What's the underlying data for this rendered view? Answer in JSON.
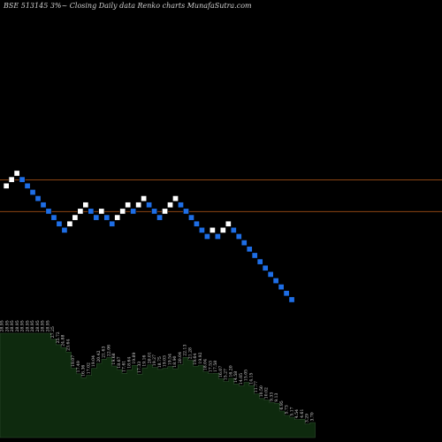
{
  "header": {
    "title": "BSE 513145 3%~  Closing Daily data  Renko  charts MunafaSutra.com"
  },
  "colors": {
    "background": "#000000",
    "up_brick": "#ffffff",
    "down_brick": "#1e6ee6",
    "level_line": "#8b4513",
    "volume_fill": "#0e2a0e",
    "volume_edge": "#2f4f2f"
  },
  "chart_data": {
    "type": "renko",
    "brick_size_note": "3%",
    "bricks": [
      {
        "dir": "up",
        "price": 36.27
      },
      {
        "dir": "up",
        "price": 37.36
      },
      {
        "dir": "up",
        "price": 38.48
      },
      {
        "dir": "down",
        "price": 37.36
      },
      {
        "dir": "down",
        "price": 36.27
      },
      {
        "dir": "down",
        "price": 35.21
      },
      {
        "dir": "down",
        "price": 34.19
      },
      {
        "dir": "down",
        "price": 33.19
      },
      {
        "dir": "down",
        "price": 32.22
      },
      {
        "dir": "down",
        "price": 31.28
      },
      {
        "dir": "down",
        "price": 30.37
      },
      {
        "dir": "down",
        "price": 29.49
      },
      {
        "dir": "up",
        "price": 30.37
      },
      {
        "dir": "up",
        "price": 31.28
      },
      {
        "dir": "up",
        "price": 32.22
      },
      {
        "dir": "up",
        "price": 33.19
      },
      {
        "dir": "down",
        "price": 32.22
      },
      {
        "dir": "down",
        "price": 31.28
      },
      {
        "dir": "up",
        "price": 32.22
      },
      {
        "dir": "down",
        "price": 31.28
      },
      {
        "dir": "down",
        "price": 30.37
      },
      {
        "dir": "up",
        "price": 31.28
      },
      {
        "dir": "up",
        "price": 32.22
      },
      {
        "dir": "up",
        "price": 33.19
      },
      {
        "dir": "down",
        "price": 32.22
      },
      {
        "dir": "up",
        "price": 33.19
      },
      {
        "dir": "up",
        "price": 34.19
      },
      {
        "dir": "down",
        "price": 33.19
      },
      {
        "dir": "down",
        "price": 32.22
      },
      {
        "dir": "down",
        "price": 31.28
      },
      {
        "dir": "up",
        "price": 32.22
      },
      {
        "dir": "up",
        "price": 33.19
      },
      {
        "dir": "up",
        "price": 34.19
      },
      {
        "dir": "down",
        "price": 33.19
      },
      {
        "dir": "down",
        "price": 32.22
      },
      {
        "dir": "down",
        "price": 31.28
      },
      {
        "dir": "down",
        "price": 30.37
      },
      {
        "dir": "down",
        "price": 29.49
      },
      {
        "dir": "down",
        "price": 28.63
      },
      {
        "dir": "up",
        "price": 29.49
      },
      {
        "dir": "down",
        "price": 28.63
      },
      {
        "dir": "up",
        "price": 29.49
      },
      {
        "dir": "up",
        "price": 30.37
      },
      {
        "dir": "down",
        "price": 29.49
      },
      {
        "dir": "down",
        "price": 28.63
      },
      {
        "dir": "down",
        "price": 27.8
      },
      {
        "dir": "down",
        "price": 26.99
      },
      {
        "dir": "down",
        "price": 26.2
      },
      {
        "dir": "down",
        "price": 25.44
      },
      {
        "dir": "down",
        "price": 24.7
      },
      {
        "dir": "down",
        "price": 23.98
      },
      {
        "dir": "down",
        "price": 23.28
      },
      {
        "dir": "down",
        "price": 22.61
      },
      {
        "dir": "down",
        "price": 21.95
      },
      {
        "dir": "down",
        "price": 21.31
      }
    ],
    "horizontal_levels": [
      36.27,
      31.28
    ],
    "volume_profile_labels": [
      "28.95",
      "28.95",
      "28.95",
      "28.95",
      "28.95",
      "28.95",
      "28.95",
      "28.95",
      "28.95",
      "28.95",
      "27.25",
      "25.72",
      "24.88",
      "23.64",
      "19.07",
      "17.49",
      "16.36",
      "17.02",
      "19.04",
      "20.42",
      "21.63",
      "22.06",
      "19.68",
      "18.67",
      "17.61",
      "18.64",
      "19.89",
      "17.33",
      "19.16",
      "20.01",
      "19.27",
      "18.75",
      "19.03",
      "19.54",
      "18.90",
      "20.04",
      "22.13",
      "21.28",
      "19.64",
      "19.92",
      "18.04",
      "17.53",
      "17.58",
      "16.07",
      "15.27",
      "16.20",
      "14.58",
      "14.05",
      "15.05",
      "14.15",
      "11.77",
      "10.50",
      "10.02",
      "9.33",
      "9.13",
      "6.95",
      "5.73",
      "5.17",
      "4.54",
      "4.61",
      "3.29",
      "3.70"
    ]
  }
}
